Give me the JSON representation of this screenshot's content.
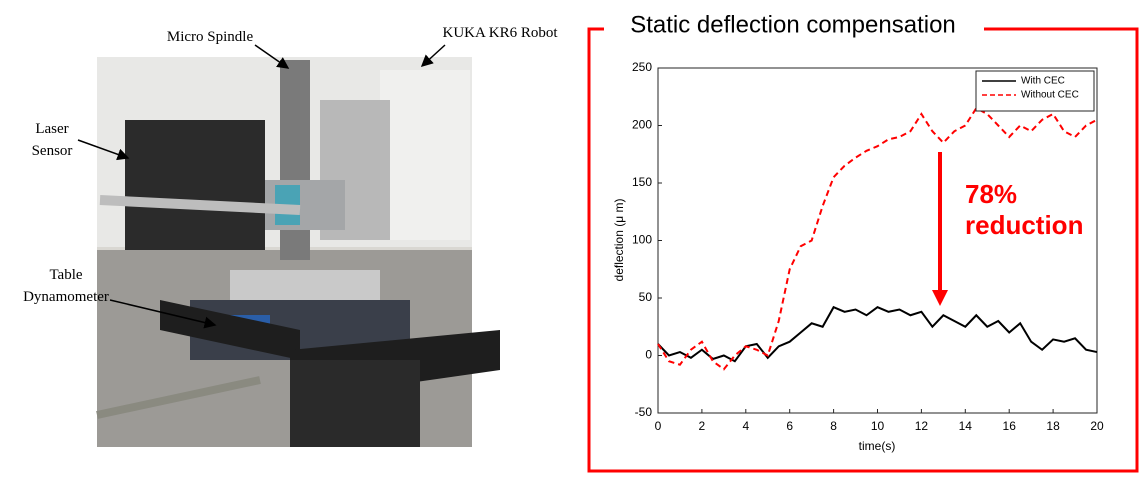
{
  "photo": {
    "labels": [
      "Micro Spindle",
      "KUKA KR6 Robot",
      "Laser Sensor",
      "Table Dynamometer"
    ]
  },
  "chart_data": {
    "type": "line",
    "title": "Static deflection compensation",
    "x_label": "time(s)",
    "y_label": "deflection (μ m)",
    "x": [
      0,
      0.5,
      1,
      1.5,
      2,
      2.5,
      3,
      3.5,
      4,
      4.5,
      5,
      5.5,
      6,
      6.5,
      7,
      7.5,
      8,
      8.5,
      9,
      9.5,
      10,
      10.5,
      11,
      11.5,
      12,
      12.5,
      13,
      13.5,
      14,
      14.5,
      15,
      15.5,
      16,
      16.5,
      17,
      17.5,
      18,
      18.5,
      19,
      19.5,
      20
    ],
    "series": [
      {
        "name": "With CEC",
        "color": "#000000",
        "dash": false,
        "values": [
          10,
          0,
          3,
          -2,
          5,
          -3,
          0,
          -5,
          8,
          10,
          -2,
          8,
          12,
          20,
          28,
          25,
          42,
          38,
          40,
          35,
          42,
          38,
          40,
          35,
          38,
          25,
          35,
          30,
          25,
          35,
          25,
          30,
          20,
          28,
          12,
          5,
          14,
          12,
          15,
          5,
          3
        ]
      },
      {
        "name": "Without CEC",
        "color": "#ff0000",
        "dash": true,
        "values": [
          10,
          -5,
          -8,
          5,
          12,
          -5,
          -12,
          0,
          8,
          5,
          0,
          30,
          75,
          95,
          100,
          130,
          155,
          165,
          172,
          178,
          182,
          188,
          190,
          195,
          210,
          195,
          185,
          195,
          200,
          215,
          210,
          200,
          190,
          200,
          195,
          205,
          210,
          195,
          190,
          200,
          205
        ]
      }
    ],
    "annotations": [
      "78%",
      "reduction"
    ],
    "xlim": [
      0,
      20
    ],
    "xticks": [
      0,
      2,
      4,
      6,
      8,
      10,
      12,
      14,
      16,
      18,
      20
    ],
    "ylim": [
      -50,
      250
    ],
    "yticks": [
      -50,
      0,
      50,
      100,
      150,
      200,
      250
    ],
    "legend": "northeast",
    "grid": false
  }
}
